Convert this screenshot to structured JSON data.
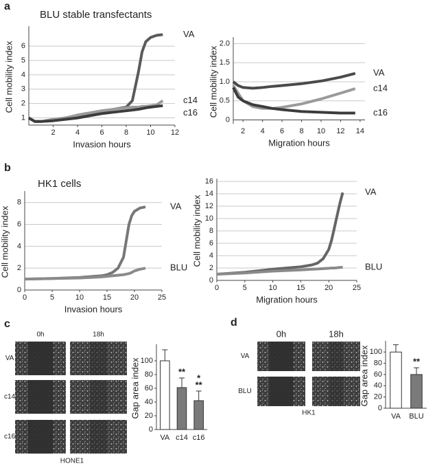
{
  "panel_labels": [
    "a",
    "b",
    "c",
    "d"
  ],
  "panel_titles": [
    "BLU stable transfectants",
    "HK1 cells"
  ],
  "micrographs": [
    {
      "columns": [
        "0h",
        "18h"
      ],
      "rows": [
        "VA",
        "c14",
        "c16"
      ],
      "caption": "HONE1"
    },
    {
      "columns": [
        "0h",
        "18h"
      ],
      "rows": [
        "VA",
        "BLU"
      ],
      "caption": "HK1"
    }
  ],
  "chart_data": [
    {
      "type": "line",
      "xlabel": "Invasion hours",
      "ylabel": "Cell mobility index",
      "xlim": [
        0,
        12
      ],
      "ylim": [
        0.5,
        7.2
      ],
      "xticks": [
        2,
        4,
        6,
        8,
        10,
        12
      ],
      "yticks": [
        1,
        2,
        3,
        4,
        5,
        6
      ],
      "grid": true,
      "x": [
        0,
        0.5,
        1,
        2,
        3,
        4,
        5,
        6,
        7,
        8,
        8.5,
        9,
        9.3,
        9.6,
        10,
        10.5,
        11
      ],
      "series": [
        {
          "name": "VA",
          "color": "#5a5a5a",
          "values": [
            1,
            0.75,
            0.75,
            0.85,
            1.0,
            1.15,
            1.3,
            1.45,
            1.6,
            1.75,
            2.2,
            4.2,
            5.6,
            6.3,
            6.6,
            6.75,
            6.8
          ]
        },
        {
          "name": "c14",
          "color": "#9a9a9a",
          "values": [
            1,
            0.75,
            0.75,
            0.9,
            1.0,
            1.2,
            1.35,
            1.5,
            1.6,
            1.7,
            1.75,
            1.75,
            1.8,
            1.8,
            1.85,
            1.9,
            2.2
          ]
        },
        {
          "name": "c16",
          "color": "#3c3c3c",
          "values": [
            1,
            0.75,
            0.75,
            0.8,
            0.9,
            1.0,
            1.15,
            1.3,
            1.4,
            1.5,
            1.55,
            1.6,
            1.65,
            1.7,
            1.75,
            1.8,
            1.85
          ]
        }
      ]
    },
    {
      "type": "line",
      "xlabel": "Migration hours",
      "ylabel": "Cell mobility index",
      "xlim": [
        1,
        14.5
      ],
      "ylim": [
        -0.1,
        2.1
      ],
      "xticks": [
        2,
        4,
        6,
        8,
        10,
        12,
        14
      ],
      "yticks": [
        0,
        0.5,
        {
          "value": 1,
          "label": "1.0"
        },
        1.5,
        {
          "value": 2,
          "label": "2.0"
        }
      ],
      "grid": true,
      "x": [
        1,
        1.5,
        2,
        3,
        4,
        5,
        6,
        8,
        10,
        12,
        13.5
      ],
      "series": [
        {
          "name": "VA",
          "color": "#4a4a4a",
          "values": [
            1,
            0.9,
            0.85,
            0.83,
            0.85,
            0.88,
            0.9,
            0.95,
            1.02,
            1.12,
            1.22
          ]
        },
        {
          "name": "c14",
          "color": "#9a9a9a",
          "values": [
            0.9,
            0.7,
            0.5,
            0.35,
            0.3,
            0.3,
            0.33,
            0.42,
            0.55,
            0.7,
            0.82
          ]
        },
        {
          "name": "c16",
          "color": "#3c3c3c",
          "values": [
            0.85,
            0.6,
            0.5,
            0.4,
            0.35,
            0.3,
            0.27,
            0.22,
            0.2,
            0.18,
            0.18
          ]
        }
      ]
    },
    {
      "type": "line",
      "xlabel": "Invasion hours",
      "ylabel": "Cell mobility index",
      "xlim": [
        0,
        25
      ],
      "ylim": [
        0,
        8.8
      ],
      "xticks": [
        0,
        5,
        10,
        15,
        20,
        25
      ],
      "yticks": [
        0,
        2,
        4,
        6,
        8
      ],
      "grid": true,
      "x": [
        0,
        5,
        10,
        14,
        15,
        16,
        17,
        18,
        18.5,
        19,
        19.5,
        20,
        21,
        22
      ],
      "series": [
        {
          "name": "VA",
          "color": "#777777",
          "values": [
            1,
            1.05,
            1.15,
            1.3,
            1.4,
            1.6,
            2.0,
            3.0,
            4.5,
            6.0,
            6.8,
            7.2,
            7.5,
            7.6
          ]
        },
        {
          "name": "BLU",
          "color": "#8a8a8a",
          "values": [
            1,
            1.05,
            1.1,
            1.2,
            1.25,
            1.3,
            1.35,
            1.4,
            1.45,
            1.5,
            1.6,
            1.75,
            1.9,
            2.0
          ]
        }
      ]
    },
    {
      "type": "line",
      "xlabel": "Migration hours",
      "ylabel": "Cell mobility index",
      "xlim": [
        0,
        25
      ],
      "ylim": [
        0,
        16
      ],
      "xticks": [
        0,
        5,
        10,
        15,
        20,
        25
      ],
      "yticks": [
        0,
        2,
        4,
        6,
        8,
        10,
        12,
        14,
        16
      ],
      "grid": true,
      "x": [
        0,
        5,
        10,
        15,
        17,
        18,
        19,
        20,
        20.5,
        21,
        21.5,
        22,
        22.5
      ],
      "series": [
        {
          "name": "VA",
          "color": "#666666",
          "values": [
            1,
            1.3,
            1.8,
            2.2,
            2.5,
            2.8,
            3.5,
            5,
            6.5,
            8.5,
            10.5,
            12.5,
            14.2
          ]
        },
        {
          "name": "BLU",
          "color": "#8a8a8a",
          "values": [
            1,
            1.2,
            1.5,
            1.7,
            1.8,
            1.85,
            1.9,
            1.95,
            2,
            2,
            2.05,
            2.1,
            2.1
          ]
        }
      ]
    },
    {
      "type": "bar",
      "ylabel": "Gap area index",
      "ylim": [
        0,
        120
      ],
      "yticks": [
        0,
        20,
        40,
        60,
        80,
        100
      ],
      "grid": false,
      "categories": [
        "VA",
        "c14",
        "c16"
      ],
      "values": [
        100,
        61,
        42
      ],
      "errors": [
        16,
        14,
        14
      ],
      "colors": [
        "#ffffff",
        "#7a7a7a",
        "#7a7a7a"
      ],
      "annotations": [
        null,
        "**",
        [
          "*",
          "**"
        ]
      ]
    },
    {
      "type": "bar",
      "ylabel": "Gap area index",
      "ylim": [
        0,
        115
      ],
      "yticks": [
        0,
        20,
        40,
        60,
        80,
        100
      ],
      "grid": false,
      "categories": [
        "VA",
        "BLU"
      ],
      "values": [
        100,
        60
      ],
      "errors": [
        13,
        12
      ],
      "colors": [
        "#ffffff",
        "#7a7a7a"
      ],
      "annotations": [
        null,
        "**"
      ]
    }
  ]
}
